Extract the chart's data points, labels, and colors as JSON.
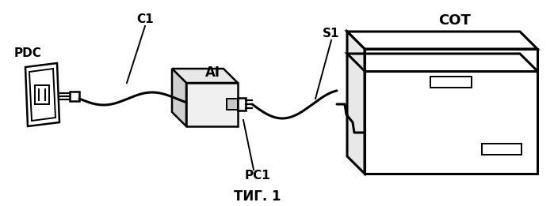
{
  "bg_color": "#ffffff",
  "line_color": "#000000",
  "title": "ΤИГ. 1",
  "label_PDC": "PDC",
  "label_C1": "C1",
  "label_AI": "AI",
  "label_PC1": "PC1",
  "label_S1": "S1",
  "label_COT": "СОТ",
  "figsize": [
    6.99,
    2.61
  ],
  "dpi": 100
}
